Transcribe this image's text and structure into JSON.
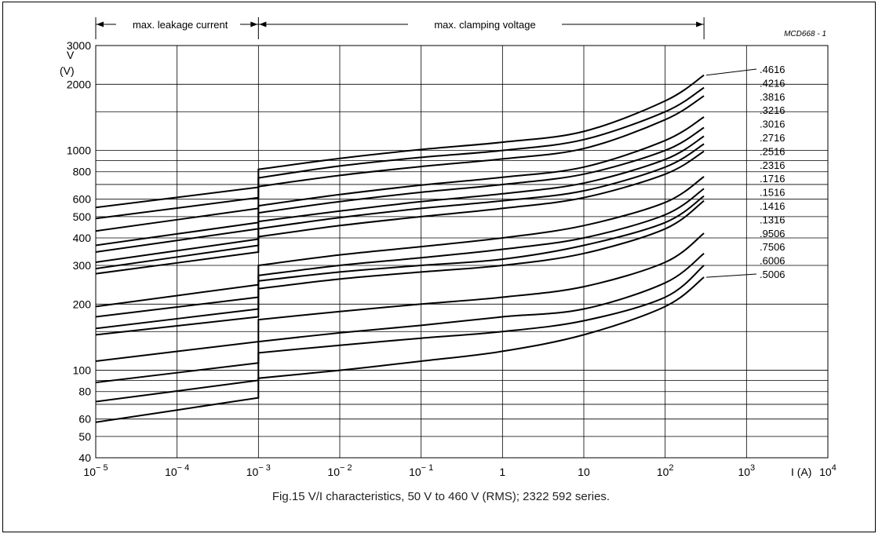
{
  "chart_data": {
    "type": "line",
    "title": "",
    "code": "MCD668 - 1",
    "caption": "Fig.15 V/I characteristics, 50 V to 460 V (RMS); 2322 592 series.",
    "xlabel": "I (A)",
    "ylabel_line1": "V",
    "ylabel_line2": "(V)",
    "x_scale": "log",
    "y_scale": "log",
    "xlim": [
      1e-05,
      10000
    ],
    "ylim": [
      40,
      3000
    ],
    "grid": true,
    "region_labels": {
      "leakage": "max. leakage current",
      "clamping": "max. clamping voltage"
    },
    "x_ticks": [
      {
        "base": "10",
        "exp": "− 5"
      },
      {
        "base": "10",
        "exp": "− 4"
      },
      {
        "base": "10",
        "exp": "− 3"
      },
      {
        "base": "10",
        "exp": "− 2"
      },
      {
        "base": "10",
        "exp": "− 1"
      },
      {
        "base": "1",
        "exp": ""
      },
      {
        "base": "10",
        "exp": ""
      },
      {
        "base": "10",
        "exp": "2"
      },
      {
        "base": "10",
        "exp": "3"
      },
      {
        "base": "10",
        "exp": "4"
      }
    ],
    "y_tick_labels": [
      "3000",
      "2000",
      "1000",
      "800",
      "600",
      "500",
      "400",
      "300",
      "200",
      "100",
      "80",
      "60",
      "50",
      "40"
    ],
    "y_tick_values": [
      3000,
      2000,
      1000,
      800,
      600,
      500,
      400,
      300,
      200,
      100,
      80,
      60,
      50,
      40
    ],
    "y_gridlines": [
      3000,
      2000,
      1500,
      1000,
      900,
      800,
      700,
      600,
      500,
      400,
      300,
      200,
      150,
      100,
      90,
      80,
      70,
      60,
      50,
      40
    ],
    "series": [
      {
        "name": ".4616",
        "x": [
          1e-05,
          0.001,
          0.001,
          0.01,
          0.1,
          1,
          10,
          100,
          300
        ],
        "y": [
          550,
          680,
          820,
          920,
          1010,
          1090,
          1220,
          1680,
          2200
        ]
      },
      {
        "name": ".4216",
        "x": [
          1e-05,
          0.001,
          0.001,
          0.01,
          0.1,
          1,
          10,
          100,
          300
        ],
        "y": [
          490,
          610,
          750,
          850,
          930,
          1000,
          1120,
          1500,
          1930
        ]
      },
      {
        "name": ".3816",
        "x": [
          1e-05,
          0.001,
          0.001,
          0.01,
          0.1,
          1,
          10,
          100,
          300
        ],
        "y": [
          430,
          545,
          685,
          770,
          845,
          915,
          1020,
          1380,
          1770
        ]
      },
      {
        "name": ".3216",
        "x": [
          1e-05,
          0.001,
          0.001,
          0.01,
          0.1,
          1,
          10,
          100,
          300
        ],
        "y": [
          370,
          470,
          560,
          630,
          695,
          755,
          840,
          1110,
          1420
        ]
      },
      {
        "name": ".3016",
        "x": [
          1e-05,
          0.001,
          0.001,
          0.01,
          0.1,
          1,
          10,
          100,
          300
        ],
        "y": [
          345,
          440,
          520,
          585,
          645,
          700,
          780,
          1000,
          1270
        ]
      },
      {
        "name": ".2716",
        "x": [
          1e-05,
          0.001,
          0.001,
          0.01,
          0.1,
          1,
          10,
          100,
          300
        ],
        "y": [
          310,
          395,
          475,
          530,
          585,
          635,
          710,
          910,
          1160
        ]
      },
      {
        "name": ".2516",
        "x": [
          1e-05,
          0.001,
          0.001,
          0.01,
          0.1,
          1,
          10,
          100,
          300
        ],
        "y": [
          290,
          370,
          440,
          495,
          545,
          590,
          655,
          840,
          1070
        ]
      },
      {
        "name": ".2316",
        "x": [
          1e-05,
          0.001,
          0.001,
          0.01,
          0.1,
          1,
          10,
          100,
          300
        ],
        "y": [
          275,
          345,
          405,
          455,
          500,
          545,
          610,
          780,
          990
        ]
      },
      {
        "name": ".1716",
        "x": [
          1e-05,
          0.001,
          0.001,
          0.01,
          0.1,
          1,
          10,
          100,
          300
        ],
        "y": [
          195,
          245,
          300,
          335,
          365,
          400,
          455,
          580,
          760
        ]
      },
      {
        "name": ".1516",
        "x": [
          1e-05,
          0.001,
          0.001,
          0.01,
          0.1,
          1,
          10,
          100,
          300
        ],
        "y": [
          175,
          215,
          270,
          300,
          325,
          355,
          400,
          510,
          670
        ]
      },
      {
        "name": ".1416",
        "x": [
          1e-05,
          0.001,
          0.001,
          0.01,
          0.1,
          1,
          10,
          100,
          300
        ],
        "y": [
          155,
          190,
          255,
          280,
          300,
          320,
          370,
          470,
          620
        ]
      },
      {
        "name": ".1316",
        "x": [
          1e-05,
          0.001,
          0.001,
          0.01,
          0.1,
          1,
          10,
          100,
          300
        ],
        "y": [
          145,
          175,
          235,
          260,
          280,
          300,
          340,
          440,
          590
        ]
      },
      {
        "name": ".9506",
        "x": [
          1e-05,
          0.001,
          0.001,
          0.01,
          0.1,
          1,
          10,
          100,
          300
        ],
        "y": [
          110,
          135,
          170,
          185,
          200,
          215,
          240,
          310,
          420
        ]
      },
      {
        "name": ".7506",
        "x": [
          1e-05,
          0.001,
          0.001,
          0.01,
          0.1,
          1,
          10,
          100,
          300
        ],
        "y": [
          88,
          108,
          135,
          148,
          160,
          175,
          190,
          250,
          340
        ]
      },
      {
        "name": ".6006",
        "x": [
          1e-05,
          0.001,
          0.001,
          0.01,
          0.1,
          1,
          10,
          100,
          300
        ],
        "y": [
          72,
          90,
          120,
          130,
          140,
          150,
          168,
          215,
          300
        ]
      },
      {
        "name": ".5006",
        "x": [
          1e-05,
          0.001,
          0.001,
          0.01,
          0.1,
          1,
          10,
          100,
          300
        ],
        "y": [
          58,
          75,
          92,
          100,
          110,
          122,
          145,
          195,
          265
        ]
      }
    ]
  }
}
